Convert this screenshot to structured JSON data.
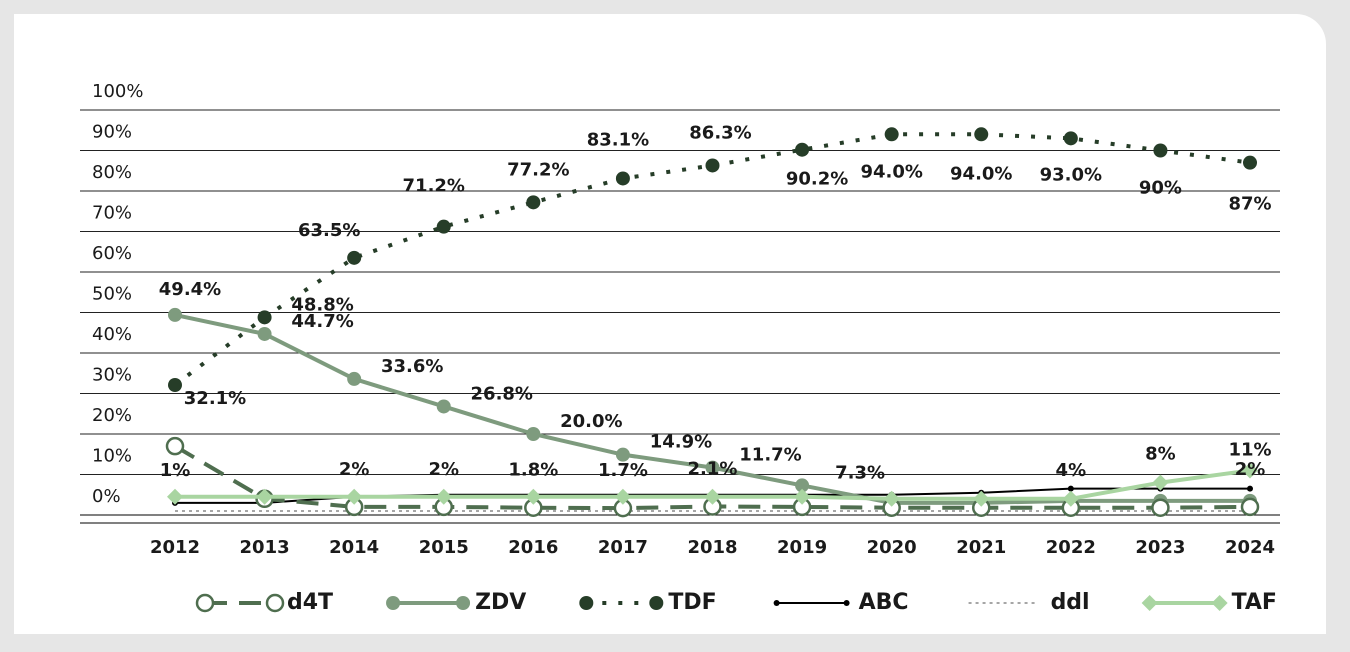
{
  "chart_data": {
    "type": "line",
    "categories": [
      "2012",
      "2013",
      "2014",
      "2015",
      "2016",
      "2017",
      "2018",
      "2019",
      "2020",
      "2021",
      "2022",
      "2023",
      "2024"
    ],
    "ylim": [
      0,
      100
    ],
    "yticks": [
      {
        "value": 0,
        "label": "0%"
      },
      {
        "value": 10,
        "label": "10%"
      },
      {
        "value": 20,
        "label": "20%"
      },
      {
        "value": 30,
        "label": "30%"
      },
      {
        "value": 40,
        "label": "40%"
      },
      {
        "value": 50,
        "label": "50%"
      },
      {
        "value": 60,
        "label": "60%"
      },
      {
        "value": 70,
        "label": "70%"
      },
      {
        "value": 80,
        "label": "80%"
      },
      {
        "value": 90,
        "label": "90%"
      },
      {
        "value": 100,
        "label": "100%"
      }
    ],
    "grid": true,
    "legend": "bottom",
    "series": [
      {
        "name": "d4T",
        "color": "#4f6e4f",
        "style": "dashed",
        "marker": "open-circle",
        "values": [
          17,
          4,
          2,
          2,
          1.8,
          1.7,
          2.1,
          2,
          1.8,
          1.8,
          1.8,
          1.8,
          2
        ],
        "value_labels": [
          null,
          null,
          "2%",
          "2%",
          "1.8%",
          "1.7%",
          "2.1%",
          null,
          null,
          null,
          null,
          null,
          "2%"
        ]
      },
      {
        "name": "ZDV",
        "color": "#7e9b7e",
        "style": "solid",
        "marker": "circle",
        "values": [
          49.4,
          44.7,
          33.6,
          26.8,
          20.0,
          14.9,
          11.7,
          7.3,
          3,
          3,
          3.5,
          3.5,
          3.5
        ],
        "value_labels": [
          "49.4%",
          "44.7%",
          "33.6%",
          "26.8%",
          "20.0%",
          "14.9%",
          "11.7%",
          "7.3%",
          null,
          null,
          null,
          null,
          null
        ]
      },
      {
        "name": "TDF",
        "color": "#263d28",
        "style": "dotted",
        "marker": "circle",
        "values": [
          32.1,
          48.8,
          63.5,
          71.2,
          77.2,
          83.1,
          86.3,
          90.2,
          94.0,
          94.0,
          93.0,
          90,
          87
        ],
        "value_labels": [
          "32.1%",
          "48.8%",
          "63.5%",
          "71.2%",
          "77.2%",
          "83.1%",
          "86.3%",
          "90.2%",
          "94.0%",
          "94.0%",
          "93.0%",
          "90%",
          "87%"
        ]
      },
      {
        "name": "ABC",
        "color": "#000000",
        "style": "thin",
        "marker": "dot",
        "values": [
          3,
          3,
          4.5,
          5,
          5,
          5,
          5,
          5,
          5,
          5.5,
          6.5,
          6.5,
          6.5
        ]
      },
      {
        "name": "ddl",
        "color": "#a6a6a6",
        "style": "fine-dotted",
        "marker": "none",
        "values": [
          1,
          1,
          1,
          1,
          1,
          1,
          1,
          1,
          1,
          1,
          1,
          1,
          1
        ],
        "value_labels": [
          "1%",
          null,
          null,
          null,
          null,
          null,
          null,
          null,
          null,
          null,
          null,
          null,
          null
        ]
      },
      {
        "name": "TAF",
        "color": "#a9d5a1",
        "style": "thick",
        "marker": "diamond",
        "values": [
          4.5,
          4.5,
          4.5,
          4.5,
          4.5,
          4.5,
          4.5,
          4.5,
          4,
          4,
          4,
          8,
          11
        ],
        "value_labels": [
          null,
          null,
          null,
          null,
          null,
          null,
          null,
          null,
          null,
          null,
          "4%",
          "8%",
          "11%"
        ]
      }
    ]
  }
}
